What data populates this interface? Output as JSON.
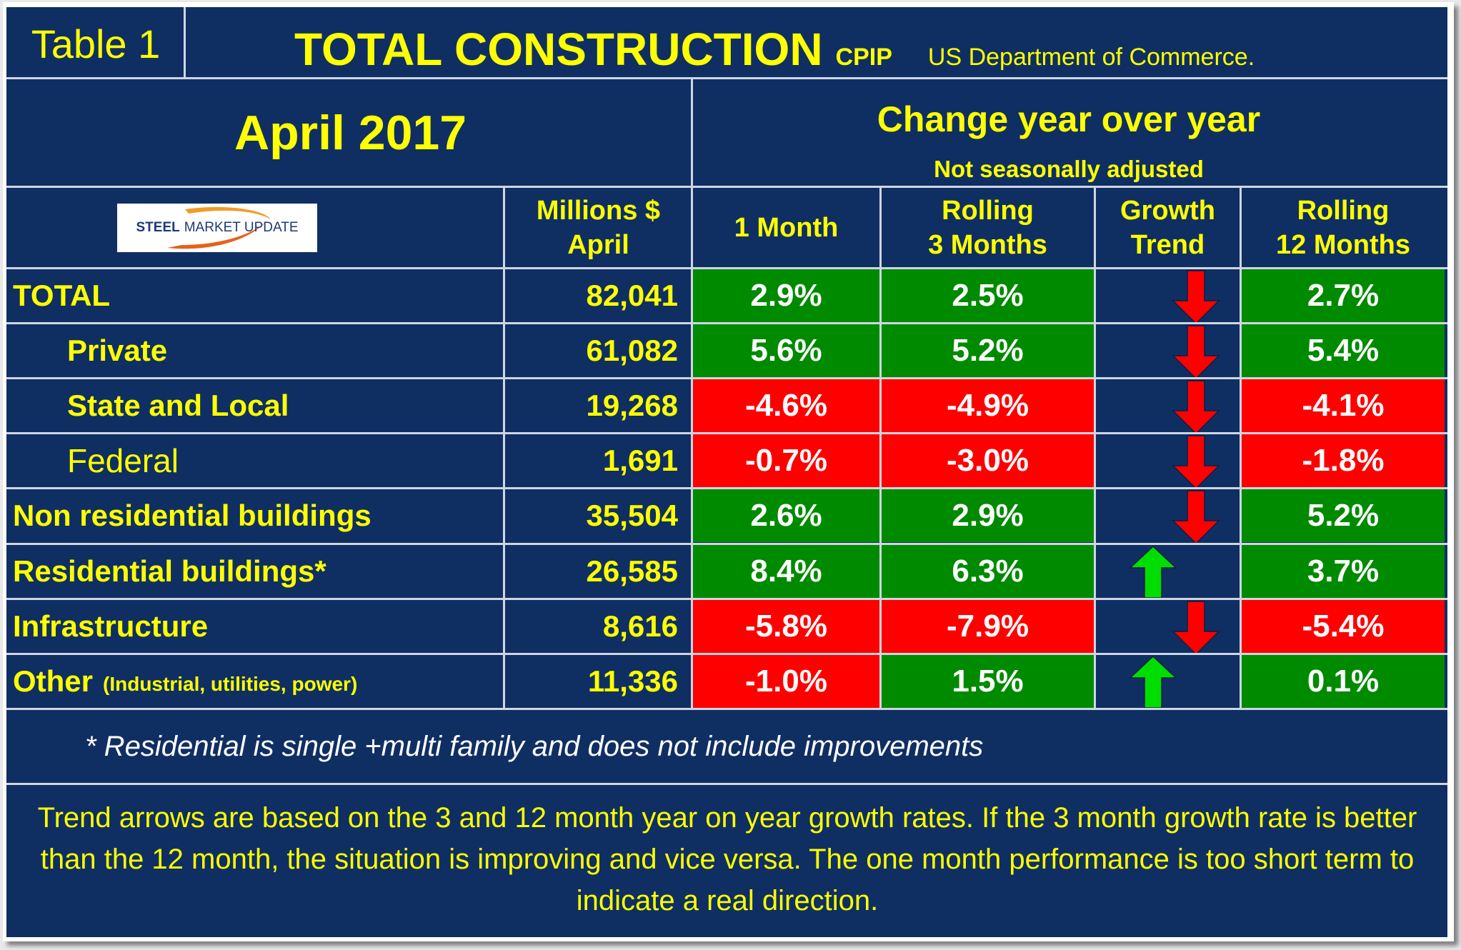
{
  "header": {
    "table_label": "Table 1",
    "title": "TOTAL CONSTRUCTION",
    "title_suffix": "CPIP",
    "source": "US Department of Commerce."
  },
  "period": "April 2017",
  "change_header": {
    "title": "Change year over year",
    "subtitle": "Not seasonally adjusted"
  },
  "logo": {
    "text_steel": "STEEL",
    "text_rest": "MARKET UPDATE"
  },
  "columns": {
    "millions_line1": "Millions $",
    "millions_line2": "April",
    "one_month": "1 Month",
    "rolling3_line1": "Rolling",
    "rolling3_line2": "3 Months",
    "trend_line1": "Growth",
    "trend_line2": "Trend",
    "rolling12_line1": "Rolling",
    "rolling12_line2": "12 Months"
  },
  "rows": [
    {
      "label": "TOTAL",
      "label_note": "",
      "value": "82,041",
      "m1": "2.9%",
      "m3": "2.5%",
      "trend": "down",
      "m12": "2.7%",
      "m1_status": "positive",
      "m3_status": "positive",
      "m12_status": "positive"
    },
    {
      "label": "Private",
      "label_note": "",
      "value": "61,082",
      "m1": "5.6%",
      "m3": "5.2%",
      "trend": "down",
      "m12": "5.4%",
      "m1_status": "positive",
      "m3_status": "positive",
      "m12_status": "positive"
    },
    {
      "label": "State and Local",
      "label_note": "",
      "value": "19,268",
      "m1": "-4.6%",
      "m3": "-4.9%",
      "trend": "down",
      "m12": "-4.1%",
      "m1_status": "negative",
      "m3_status": "negative",
      "m12_status": "negative"
    },
    {
      "label": "Federal",
      "label_note": "",
      "value": "1,691",
      "m1": "-0.7%",
      "m3": "-3.0%",
      "trend": "down",
      "m12": "-1.8%",
      "m1_status": "negative",
      "m3_status": "negative",
      "m12_status": "negative"
    },
    {
      "label": "Non residential buildings",
      "label_note": "",
      "value": "35,504",
      "m1": "2.6%",
      "m3": "2.9%",
      "trend": "down",
      "m12": "5.2%",
      "m1_status": "positive",
      "m3_status": "positive",
      "m12_status": "positive"
    },
    {
      "label": "Residential buildings*",
      "label_note": "",
      "value": "26,585",
      "m1": "8.4%",
      "m3": "6.3%",
      "trend": "up",
      "m12": "3.7%",
      "m1_status": "positive",
      "m3_status": "positive",
      "m12_status": "positive"
    },
    {
      "label": "Infrastructure",
      "label_note": "",
      "value": "8,616",
      "m1": "-5.8%",
      "m3": "-7.9%",
      "trend": "down",
      "m12": "-5.4%",
      "m1_status": "negative",
      "m3_status": "negative",
      "m12_status": "negative"
    },
    {
      "label": "Other",
      "label_note": "(Industrial, utilities, power)",
      "value": "11,336",
      "m1": "-1.0%",
      "m3": "1.5%",
      "trend": "up",
      "m12": "0.1%",
      "m1_status": "negative",
      "m3_status": "positive",
      "m12_status": "positive"
    }
  ],
  "footnote": "* Residential is single +multi family and does not include improvements",
  "explanation": "Trend arrows are based on the 3 and 12 month year on year growth rates. If the 3 month growth rate is better than the 12 month, the situation is improving and vice versa. The one month performance is too short term to indicate a real direction.",
  "colors": {
    "background": "#0f2f63",
    "title_text": "#ffff00",
    "positive": "#008a00",
    "negative": "#ff0000",
    "arrow_down": "#ff0000",
    "arrow_up": "#00dd00"
  }
}
